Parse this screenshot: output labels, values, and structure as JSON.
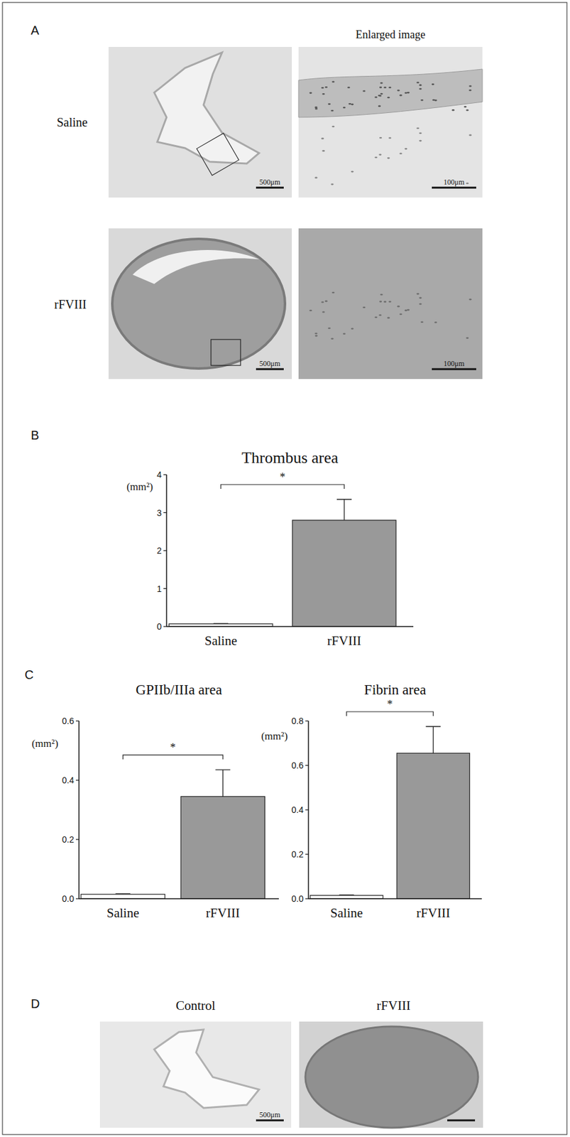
{
  "figure": {
    "panel_labels": [
      "A",
      "B",
      "C",
      "D"
    ],
    "panel_a": {
      "column_title": "Enlarged image",
      "rows": [
        "Saline",
        "rFVIII"
      ],
      "scale_bars": [
        "500μm",
        "100μm"
      ]
    },
    "panel_d": {
      "titles": [
        "Control",
        "rFVIII"
      ],
      "scale_bar": "500μm"
    }
  },
  "chart_data": [
    {
      "type": "bar",
      "title": "Thrombus area",
      "y_label": "(mm²)",
      "categories": [
        "Saline",
        "rFVIII"
      ],
      "values": [
        0.07,
        2.8
      ],
      "errors": [
        0.01,
        0.55
      ],
      "colors": [
        "#ffffff",
        "#999999"
      ],
      "ylim": [
        0,
        4
      ],
      "yticks": [
        0,
        1,
        2,
        3,
        4
      ],
      "annotations": [
        {
          "text": "*"
        }
      ]
    },
    {
      "type": "bar",
      "title": "GPIIb/IIIa area",
      "y_label": "(mm²)",
      "categories": [
        "Saline",
        "rFVIII"
      ],
      "values": [
        0.015,
        0.345
      ],
      "errors": [
        0.002,
        0.09
      ],
      "colors": [
        "#ffffff",
        "#999999"
      ],
      "ylim": [
        0,
        0.6
      ],
      "yticks": [
        {
          "value": 0,
          "label": "0.0"
        },
        0.2,
        0.4,
        0.6
      ],
      "annotations": [
        {
          "text": "*"
        }
      ]
    },
    {
      "type": "bar",
      "title": "Fibrin area",
      "y_label": "(mm²)",
      "categories": [
        "Saline",
        "rFVIII"
      ],
      "values": [
        0.015,
        0.655
      ],
      "errors": [
        0.002,
        0.12
      ],
      "colors": [
        "#ffffff",
        "#999999"
      ],
      "ylim": [
        0,
        0.8
      ],
      "yticks": [
        {
          "value": 0,
          "label": "0.0"
        },
        0.2,
        0.4,
        0.6,
        0.8
      ],
      "annotations": [
        {
          "text": "*"
        }
      ]
    }
  ]
}
